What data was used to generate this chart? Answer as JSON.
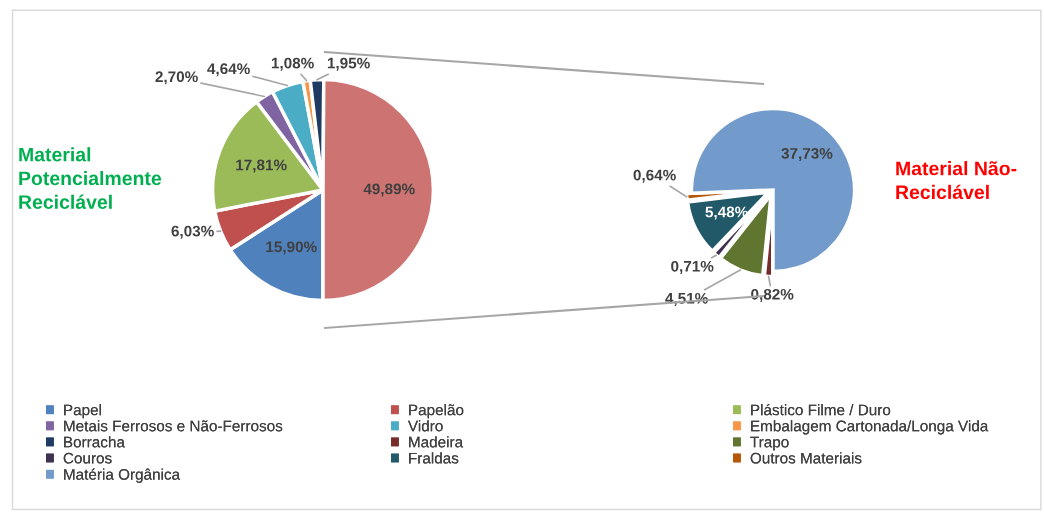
{
  "chart_data": [
    {
      "type": "pie",
      "title": "Material\nPotencialmente\nReciclável",
      "legend": "bottom",
      "categories": [
        "Papel",
        "Papelão",
        "Plástico Filme / Duro",
        "Metais Ferrosos e Não-Ferrosos",
        "Vidro",
        "Embalagem Cartonada/Longa Vida",
        "Borracha",
        null
      ],
      "values": [
        15.9,
        6.03,
        17.81,
        2.7,
        4.64,
        1.08,
        1.95,
        49.89
      ],
      "colors": [
        "#4f81bd",
        "#c0504d",
        "#9bbb59",
        "#8064a2",
        "#4bacc6",
        "#f79646",
        "#1f3b63",
        "#cd7371"
      ],
      "value_labels": [
        "15,90%",
        "6,03%",
        "17,81%",
        "2,70%",
        "4,64%",
        "1,08%",
        "1,95%",
        "49,89%"
      ]
    },
    {
      "type": "pie",
      "title": "Material Não-\nReciclável",
      "legend": "bottom",
      "categories": [
        "Madeira",
        "Trapo",
        "Couros",
        "Fraldas",
        "Outros Materiais",
        "Matéria Orgânica"
      ],
      "values": [
        0.82,
        4.51,
        0.71,
        5.48,
        0.64,
        37.73
      ],
      "colors": [
        "#772c2a",
        "#5f7530",
        "#3f3151",
        "#215968",
        "#b65708",
        "#729aca"
      ],
      "value_labels": [
        "0,82%",
        "4,51%",
        "0,71%",
        "5,48%",
        "0,64%",
        "37,73%"
      ]
    }
  ]
}
